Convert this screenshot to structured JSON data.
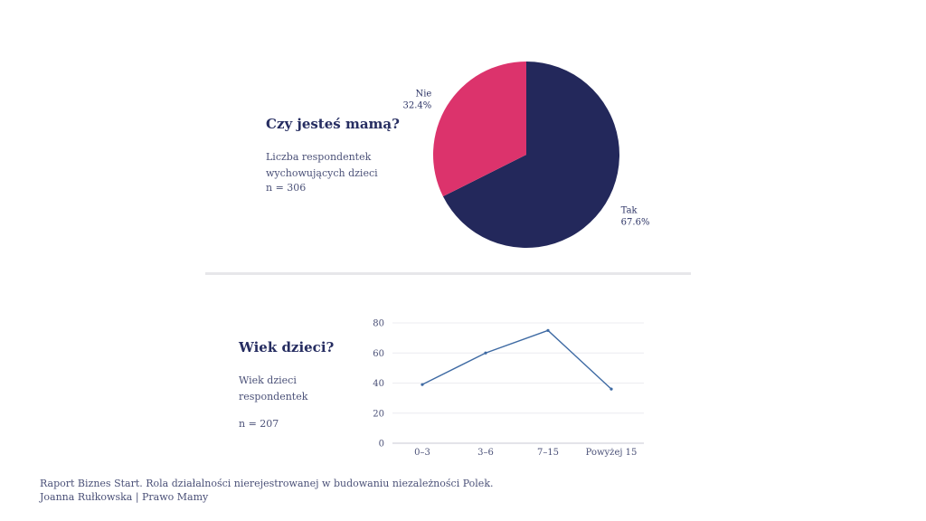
{
  "pie_section": {
    "title": "Czy jesteś mamą?",
    "desc": "Liczba respondentek wychowujących dzieci",
    "n": "n = 306"
  },
  "line_section": {
    "title": "Wiek dzieci?",
    "desc": "Wiek dzieci respondentek",
    "n": "n = 207"
  },
  "footer": {
    "line1": "Raport Biznes Start. Rola działalności nierejestrowanej w budowaniu niezależności Polek.",
    "line2": "Joanna Rułkowska | Prawo Mamy"
  },
  "chart_data": [
    {
      "type": "pie",
      "slices": [
        {
          "label": "Tak",
          "pct_label": "67.6%",
          "value": 67.6,
          "color": "#23285b"
        },
        {
          "label": "Nie",
          "pct_label": "32.4%",
          "value": 32.4,
          "color": "#dc336c"
        }
      ]
    },
    {
      "type": "line",
      "categories": [
        "0–3",
        "3–6",
        "7–15",
        "Powyżej 15"
      ],
      "series": [
        {
          "values": [
            39,
            60,
            75,
            36
          ],
          "color": "#3e6aa3"
        }
      ],
      "ylim": [
        0,
        80
      ],
      "yticks": [
        "0",
        "20",
        "40",
        "60",
        "80"
      ],
      "grid": true
    }
  ]
}
